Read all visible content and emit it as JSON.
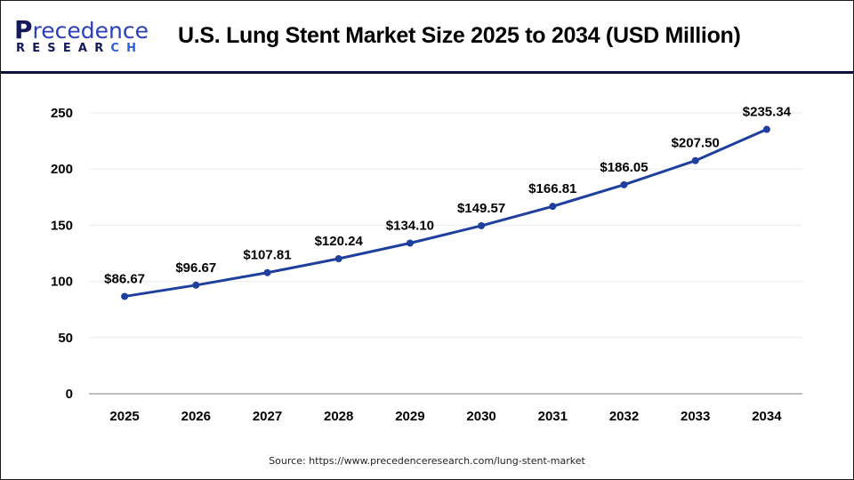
{
  "header": {
    "logo": {
      "word_initial": "P",
      "word_rest": "recedence",
      "sub_main": "RESEAR",
      "sub_accent": "CH"
    },
    "title": "U.S. Lung Stent Market Size 2025 to 2034 (USD Million)"
  },
  "footer": {
    "source": "Source: https://www.precedenceresearch.com/lung-stent-market"
  },
  "colors": {
    "line": "#1f3f9e",
    "marker": "#1f3f9e",
    "grid": "#ececec",
    "axis": "#bdbdbd",
    "divider": "#0d0f3d"
  },
  "chart_data": {
    "type": "line",
    "title": "U.S. Lung Stent Market Size 2025 to 2034 (USD Million)",
    "xlabel": "",
    "ylabel": "",
    "categories": [
      "2025",
      "2026",
      "2027",
      "2028",
      "2029",
      "2030",
      "2031",
      "2032",
      "2033",
      "2034"
    ],
    "series": [
      {
        "name": "U.S. Lung Stent Market Size",
        "values": [
          86.67,
          96.67,
          107.81,
          120.24,
          134.1,
          149.57,
          166.81,
          186.05,
          207.5,
          235.34
        ],
        "labels": [
          "$86.67",
          "$96.67",
          "$107.81",
          "$120.24",
          "$134.10",
          "$149.57",
          "$166.81",
          "$186.05",
          "$207.50",
          "$235.34"
        ]
      }
    ],
    "ylim": [
      0,
      250
    ],
    "yticks": [
      0,
      50,
      100,
      150,
      200,
      250
    ],
    "ytick_labels": [
      "0",
      "50",
      "100",
      "150",
      "200",
      "250"
    ],
    "grid": true,
    "legend": "none"
  }
}
